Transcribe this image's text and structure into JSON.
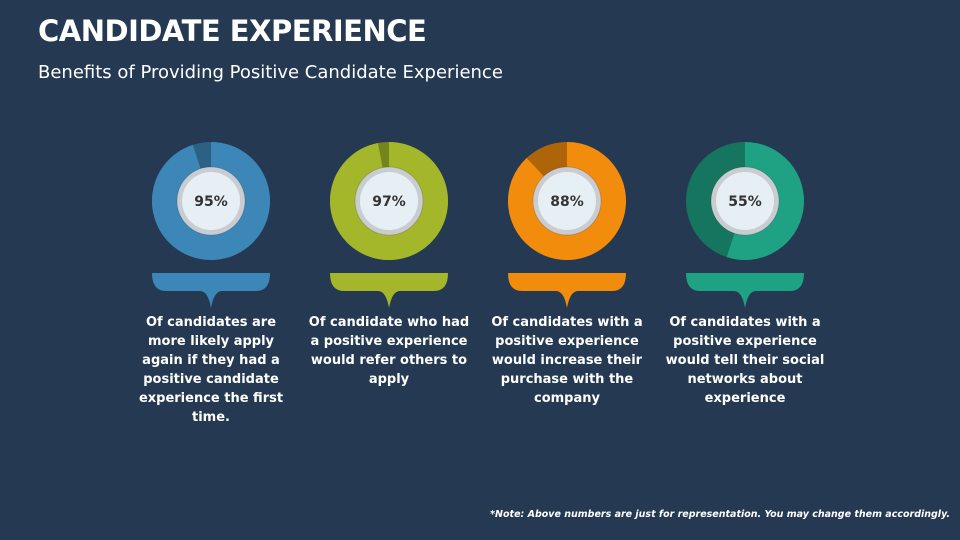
{
  "title": "CANDIDATE EXPERIENCE",
  "subtitle": "Benefits of Providing Positive Candidate Experience",
  "note": "*Note: Above numbers are just for representation. You may change them accordingly.",
  "chart_data": [
    {
      "type": "donut",
      "values": [
        95
      ],
      "value_labels": [
        "95%"
      ],
      "color": "#3d87b8",
      "description": "Of candidates are more likely apply again if they had a positive candidate experience the first time."
    },
    {
      "type": "donut",
      "values": [
        97
      ],
      "value_labels": [
        "97%"
      ],
      "color": "#a4b72a",
      "description": "Of candidate who had a positive experience would refer others to apply"
    },
    {
      "type": "donut",
      "values": [
        88
      ],
      "value_labels": [
        "88%"
      ],
      "color": "#f28c0c",
      "description": "Of candidates with a positive experience would increase their purchase with the company"
    },
    {
      "type": "donut",
      "values": [
        55
      ],
      "value_labels": [
        "55%"
      ],
      "color": "#1fa283",
      "description": "Of candidates with a positive experience would tell their social networks about experience"
    }
  ]
}
